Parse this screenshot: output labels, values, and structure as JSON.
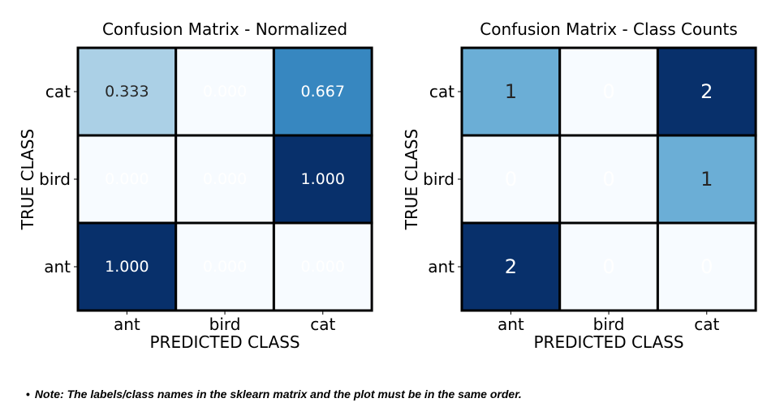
{
  "chart_data": [
    {
      "type": "heatmap",
      "title": "Confusion Matrix - Normalized",
      "xlabel": "PREDICTED CLASS",
      "ylabel": "TRUE CLASS",
      "x_categories": [
        "ant",
        "bird",
        "cat"
      ],
      "y_categories": [
        "cat",
        "bird",
        "ant"
      ],
      "values": [
        [
          0.333,
          0.0,
          0.667
        ],
        [
          0.0,
          0.0,
          1.0
        ],
        [
          1.0,
          0.0,
          0.0
        ]
      ],
      "labels": [
        [
          "0.333",
          "0.000",
          "0.667"
        ],
        [
          "0.000",
          "0.000",
          "1.000"
        ],
        [
          "1.000",
          "0.000",
          "0.000"
        ]
      ],
      "vmin": 0,
      "vmax": 1,
      "colormap": "Blues"
    },
    {
      "type": "heatmap",
      "title": "Confusion Matrix - Class Counts",
      "xlabel": "PREDICTED CLASS",
      "ylabel": "TRUE CLASS",
      "x_categories": [
        "ant",
        "bird",
        "cat"
      ],
      "y_categories": [
        "cat",
        "bird",
        "ant"
      ],
      "values": [
        [
          1,
          0,
          2
        ],
        [
          0,
          0,
          1
        ],
        [
          2,
          0,
          0
        ]
      ],
      "labels": [
        [
          "1",
          "0",
          "2"
        ],
        [
          "0",
          "0",
          "1"
        ],
        [
          "2",
          "0",
          "0"
        ]
      ],
      "vmin": 0,
      "vmax": 2,
      "colormap": "Blues"
    }
  ],
  "note": {
    "bullet": "•",
    "text": "Note: The labels/class names in the sklearn matrix and the plot must be in the same order."
  }
}
